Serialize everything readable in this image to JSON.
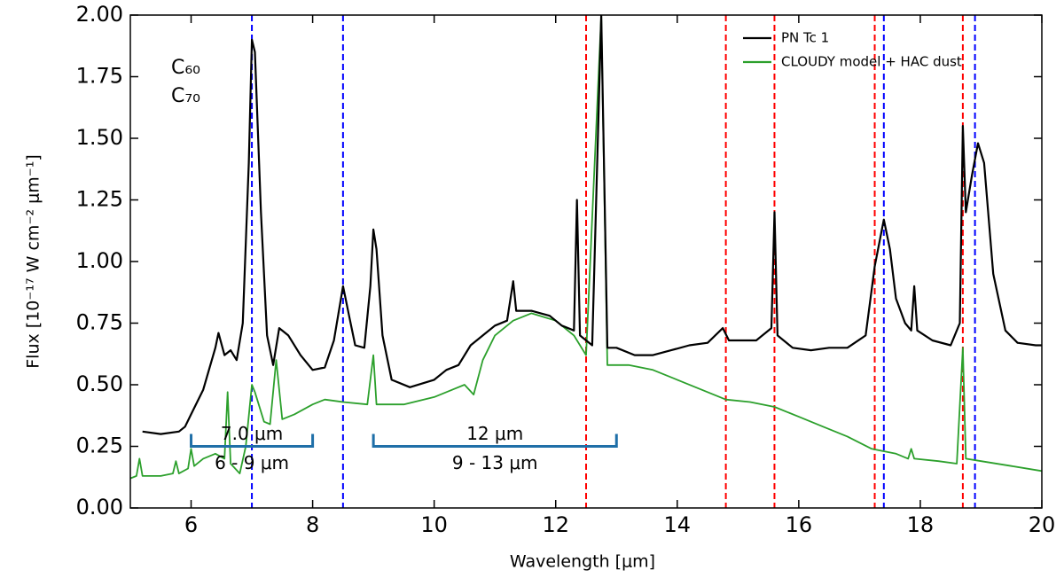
{
  "chart_data": {
    "type": "line",
    "xlabel": "Wavelength [μm]",
    "ylabel": "Flux [10⁻¹⁷ W cm⁻² μm⁻¹]",
    "xlim": [
      5,
      20
    ],
    "ylim": [
      0,
      2
    ],
    "xticks": [
      6,
      8,
      10,
      12,
      14,
      16,
      18,
      20
    ],
    "yticks": [
      {
        "value": 0,
        "label": "0.00"
      },
      {
        "value": 0.25,
        "label": "0.25"
      },
      {
        "value": 0.5,
        "label": "0.50"
      },
      {
        "value": 0.75,
        "label": "0.75"
      },
      {
        "value": 1,
        "label": "1.00"
      },
      {
        "value": 1.25,
        "label": "1.25"
      },
      {
        "value": 1.5,
        "label": "1.50"
      },
      {
        "value": 1.75,
        "label": "1.75"
      },
      {
        "value": 2,
        "label": "2.00"
      }
    ],
    "legend": "upper right",
    "series": [
      {
        "name": "PN Tc 1",
        "color": "#000000",
        "x": [
          5.2,
          5.5,
          5.8,
          5.9,
          6.0,
          6.2,
          6.4,
          6.45,
          6.55,
          6.65,
          6.75,
          6.85,
          6.95,
          7.0,
          7.05,
          7.15,
          7.25,
          7.35,
          7.45,
          7.6,
          7.8,
          8.0,
          8.2,
          8.35,
          8.5,
          8.6,
          8.7,
          8.85,
          8.95,
          9.0,
          9.05,
          9.15,
          9.3,
          9.6,
          10.0,
          10.2,
          10.4,
          10.6,
          10.8,
          11.0,
          11.2,
          11.3,
          11.35,
          11.6,
          11.9,
          12.1,
          12.3,
          12.35,
          12.4,
          12.6,
          12.75,
          12.85,
          13.0,
          13.3,
          13.6,
          13.9,
          14.2,
          14.5,
          14.75,
          14.85,
          15.0,
          15.3,
          15.55,
          15.6,
          15.65,
          15.9,
          16.2,
          16.5,
          16.8,
          17.1,
          17.25,
          17.4,
          17.5,
          17.6,
          17.75,
          17.85,
          17.9,
          17.95,
          18.2,
          18.5,
          18.65,
          18.7,
          18.75,
          18.85,
          18.95,
          19.05,
          19.2,
          19.4,
          19.6,
          19.9,
          20.0
        ],
        "values": [
          0.31,
          0.3,
          0.31,
          0.33,
          0.38,
          0.48,
          0.65,
          0.71,
          0.62,
          0.64,
          0.6,
          0.75,
          1.4,
          1.9,
          1.85,
          1.2,
          0.7,
          0.58,
          0.73,
          0.7,
          0.62,
          0.56,
          0.57,
          0.68,
          0.9,
          0.78,
          0.66,
          0.65,
          0.9,
          1.13,
          1.05,
          0.7,
          0.52,
          0.49,
          0.52,
          0.56,
          0.58,
          0.66,
          0.7,
          0.74,
          0.76,
          0.92,
          0.8,
          0.8,
          0.78,
          0.74,
          0.72,
          1.25,
          0.7,
          0.66,
          2.0,
          0.65,
          0.65,
          0.62,
          0.62,
          0.64,
          0.66,
          0.67,
          0.73,
          0.68,
          0.68,
          0.68,
          0.73,
          1.2,
          0.7,
          0.65,
          0.64,
          0.65,
          0.65,
          0.7,
          0.98,
          1.17,
          1.05,
          0.85,
          0.75,
          0.72,
          0.9,
          0.72,
          0.68,
          0.66,
          0.75,
          1.55,
          1.2,
          1.35,
          1.48,
          1.4,
          0.95,
          0.72,
          0.67,
          0.66,
          0.66
        ]
      },
      {
        "name": "CLOUDY model + HAC dust",
        "color": "#2ca02c",
        "x": [
          5.0,
          5.1,
          5.15,
          5.2,
          5.5,
          5.7,
          5.75,
          5.8,
          5.95,
          6.0,
          6.05,
          6.2,
          6.4,
          6.55,
          6.6,
          6.65,
          6.8,
          6.9,
          7.0,
          7.05,
          7.2,
          7.3,
          7.4,
          7.5,
          7.7,
          8.0,
          8.2,
          8.5,
          8.9,
          9.0,
          9.05,
          9.5,
          10.0,
          10.3,
          10.5,
          10.65,
          10.8,
          11.0,
          11.3,
          11.6,
          12.0,
          12.3,
          12.5,
          12.75,
          12.85,
          13.2,
          13.6,
          14.0,
          14.4,
          14.8,
          15.2,
          15.6,
          16.0,
          16.4,
          16.8,
          17.2,
          17.6,
          17.8,
          17.85,
          17.9,
          18.3,
          18.6,
          18.7,
          18.75,
          19.0,
          19.5,
          20.0
        ],
        "values": [
          0.12,
          0.13,
          0.2,
          0.13,
          0.13,
          0.14,
          0.19,
          0.14,
          0.16,
          0.24,
          0.17,
          0.2,
          0.22,
          0.2,
          0.47,
          0.18,
          0.14,
          0.25,
          0.5,
          0.47,
          0.35,
          0.34,
          0.6,
          0.36,
          0.38,
          0.42,
          0.44,
          0.43,
          0.42,
          0.62,
          0.42,
          0.42,
          0.45,
          0.48,
          0.5,
          0.46,
          0.6,
          0.7,
          0.76,
          0.79,
          0.76,
          0.7,
          0.62,
          2.0,
          0.58,
          0.58,
          0.56,
          0.52,
          0.48,
          0.44,
          0.43,
          0.41,
          0.37,
          0.33,
          0.29,
          0.24,
          0.22,
          0.2,
          0.24,
          0.2,
          0.19,
          0.18,
          0.65,
          0.2,
          0.19,
          0.17,
          0.15
        ]
      }
    ],
    "vlines": [
      {
        "label": "C₆₀",
        "color": "#0000ff",
        "x": [
          7.0,
          8.5,
          17.4,
          18.9
        ]
      },
      {
        "label": "C₇₀",
        "color": "#ff0000",
        "x": [
          12.5,
          14.8,
          15.6,
          17.25,
          18.7
        ]
      }
    ],
    "brackets": [
      {
        "color": "#1f6fa8",
        "x": [
          6,
          8
        ],
        "y": 0.25,
        "labels": [
          "7.0 μm",
          "6 - 9 μm"
        ]
      },
      {
        "color": "#1f6fa8",
        "x": [
          9,
          13
        ],
        "y": 0.25,
        "labels": [
          "12 μm",
          "9 - 13 μm"
        ]
      }
    ]
  }
}
